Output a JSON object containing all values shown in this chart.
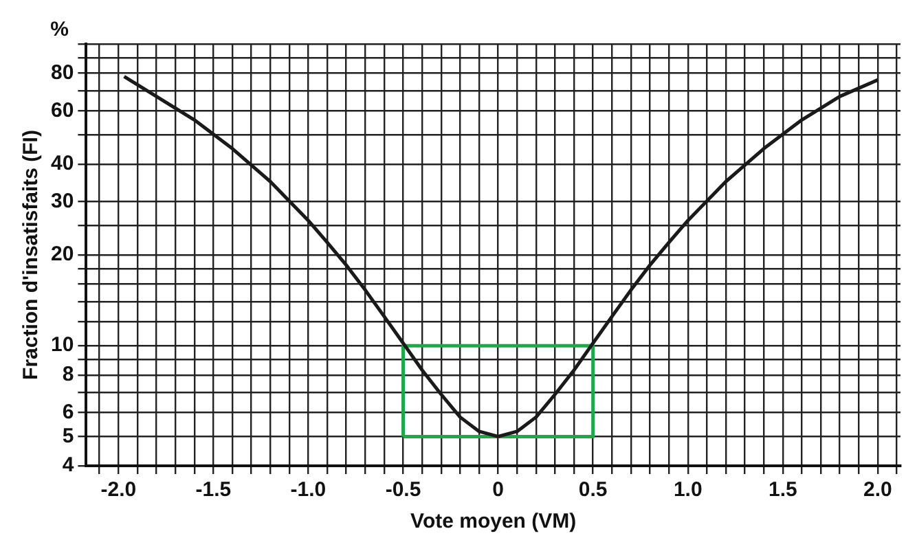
{
  "chart_data": {
    "type": "line",
    "xlabel": "Vote moyen (VM)",
    "ylabel": "Fraction d'insatisfaits (FI)",
    "annotations": [
      "%"
    ],
    "log": "y",
    "grid": true,
    "legend": false,
    "marker": "none",
    "xlim": [
      -2.17,
      2.12
    ],
    "ylim": [
      4,
      100
    ],
    "xticks": [
      {
        "value": -2.1,
        "label": null
      },
      {
        "value": -2.0,
        "label": "-2.0"
      },
      {
        "value": -1.9,
        "label": null
      },
      {
        "value": -1.8,
        "label": null
      },
      {
        "value": -1.7,
        "label": null
      },
      {
        "value": -1.6,
        "label": null
      },
      {
        "value": -1.5,
        "label": "-1.5"
      },
      {
        "value": -1.4,
        "label": null
      },
      {
        "value": -1.3,
        "label": null
      },
      {
        "value": -1.2,
        "label": null
      },
      {
        "value": -1.1,
        "label": null
      },
      {
        "value": -1.0,
        "label": "-1.0"
      },
      {
        "value": -0.9,
        "label": null
      },
      {
        "value": -0.8,
        "label": null
      },
      {
        "value": -0.7,
        "label": null
      },
      {
        "value": -0.6,
        "label": null
      },
      {
        "value": -0.5,
        "label": "-0.5"
      },
      {
        "value": -0.4,
        "label": null
      },
      {
        "value": -0.3,
        "label": null
      },
      {
        "value": -0.2,
        "label": null
      },
      {
        "value": -0.1,
        "label": null
      },
      0,
      {
        "value": 0.1,
        "label": null
      },
      {
        "value": 0.2,
        "label": null
      },
      {
        "value": 0.3,
        "label": null
      },
      {
        "value": 0.4,
        "label": null
      },
      {
        "value": 0.5,
        "label": "0.5"
      },
      {
        "value": 0.6,
        "label": null
      },
      {
        "value": 0.7,
        "label": null
      },
      {
        "value": 0.8,
        "label": null
      },
      {
        "value": 0.9,
        "label": null
      },
      {
        "value": 1.0,
        "label": "1.0"
      },
      {
        "value": 1.1,
        "label": null
      },
      {
        "value": 1.2,
        "label": null
      },
      {
        "value": 1.3,
        "label": null
      },
      {
        "value": 1.4,
        "label": null
      },
      {
        "value": 1.5,
        "label": "1.5"
      },
      {
        "value": 1.6,
        "label": null
      },
      {
        "value": 1.7,
        "label": null
      },
      {
        "value": 1.8,
        "label": null
      },
      {
        "value": 1.9,
        "label": null
      },
      {
        "value": 2.0,
        "label": "2.0"
      },
      {
        "value": 2.1,
        "label": null
      }
    ],
    "yticks": [
      4,
      5,
      6,
      {
        "value": 7,
        "label": null
      },
      8,
      {
        "value": 9,
        "label": null
      },
      10,
      {
        "value": 12,
        "label": null
      },
      {
        "value": 14,
        "label": null
      },
      {
        "value": 16,
        "label": null
      },
      {
        "value": 18,
        "label": null
      },
      20,
      {
        "value": 25,
        "label": null
      },
      30,
      40,
      {
        "value": 50,
        "label": null
      },
      60,
      {
        "value": 70,
        "label": null
      },
      80,
      {
        "value": 90,
        "label": null
      },
      {
        "value": 100,
        "label": null
      }
    ],
    "series": [
      {
        "color": "#1a1a1a",
        "x": [
          -1.97,
          -1.8,
          -1.6,
          -1.4,
          -1.2,
          -1.0,
          -0.9,
          -0.8,
          -0.7,
          -0.6,
          -0.5,
          -0.4,
          -0.3,
          -0.2,
          -0.1,
          0,
          0.1,
          0.2,
          0.3,
          0.4,
          0.5,
          0.6,
          0.7,
          0.8,
          0.9,
          1.0,
          1.2,
          1.4,
          1.6,
          1.8,
          2.0
        ],
        "values": [
          78,
          67,
          56,
          45,
          35,
          26,
          22,
          18.5,
          15.3,
          12.5,
          10.2,
          8.3,
          6.9,
          5.8,
          5.2,
          5,
          5.2,
          5.8,
          6.9,
          8.3,
          10.2,
          12.5,
          15.3,
          18.5,
          22,
          26,
          35,
          45,
          56,
          67,
          76
        ]
      },
      {
        "color": "#1ea84a",
        "x": [
          -0.5,
          -0.5,
          0.5,
          0.5
        ],
        "values": [
          5,
          10,
          10,
          5
        ]
      },
      {
        "color": "#1ea84a",
        "x": [
          -0.5,
          0.5
        ],
        "values": [
          5,
          5
        ]
      }
    ]
  }
}
